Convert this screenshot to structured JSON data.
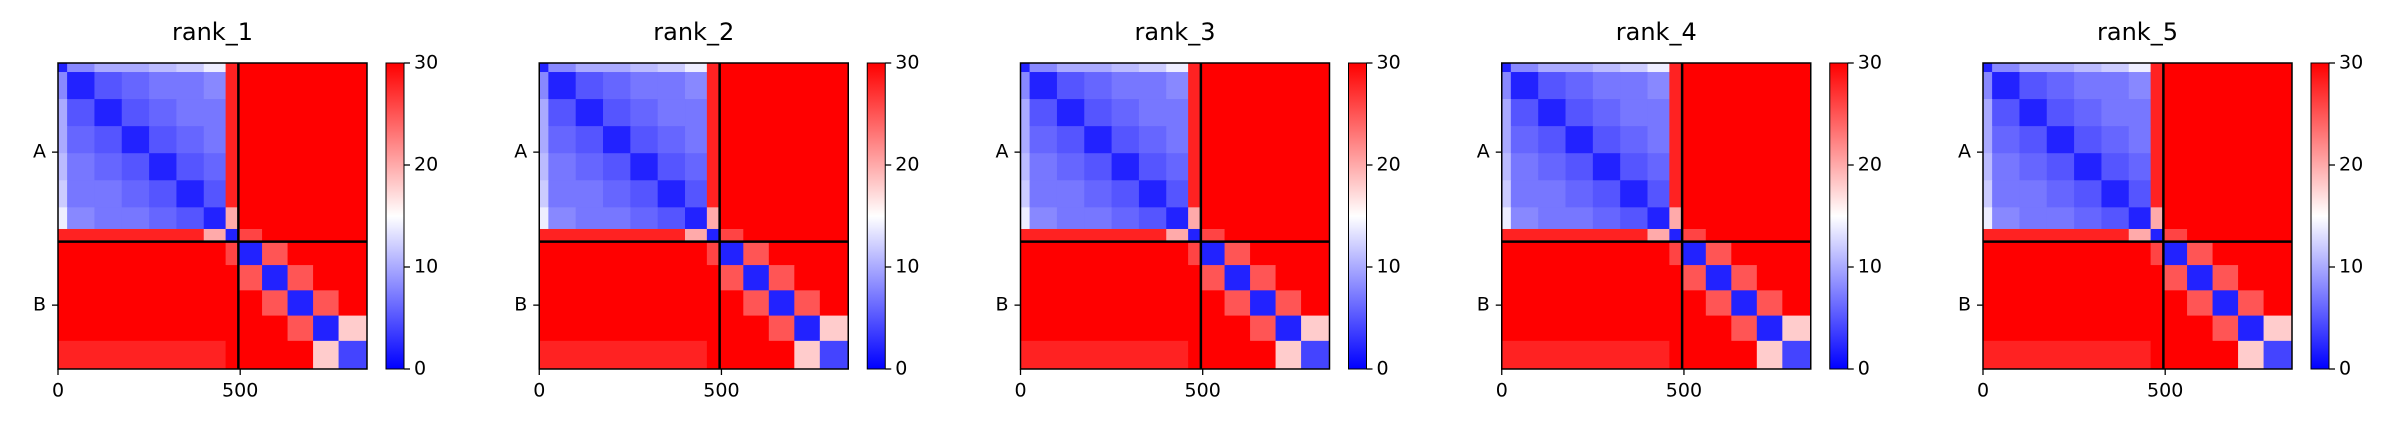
{
  "chart_data": [
    {
      "type": "heatmap",
      "title": "rank_1",
      "xlim": [
        0,
        848
      ],
      "ylim": [
        848,
        0
      ],
      "xticks": [
        0,
        500
      ],
      "yticks": [
        {
          "value": 247,
          "label": "A"
        },
        {
          "value": 671,
          "label": "B"
        }
      ],
      "dividers": [
        495
      ],
      "bins": [
        0,
        25,
        100,
        175,
        250,
        325,
        400,
        460,
        495,
        560,
        630,
        700,
        770,
        848
      ],
      "clim": [
        0,
        30
      ],
      "cticks": [
        0,
        10,
        20,
        30
      ],
      "colormap": [
        "#0000ff",
        "#ffffff",
        "#ff0000"
      ],
      "values": [
        [
          2,
          8,
          10,
          10,
          11,
          12,
          14,
          28,
          30,
          30,
          30,
          30,
          30
        ],
        [
          8,
          2,
          5,
          6,
          7,
          7,
          8,
          28,
          30,
          30,
          30,
          30,
          30
        ],
        [
          10,
          5,
          2,
          5,
          6,
          7,
          7,
          28,
          30,
          30,
          30,
          30,
          30
        ],
        [
          10,
          6,
          5,
          2,
          5,
          6,
          7,
          28,
          30,
          30,
          30,
          30,
          30
        ],
        [
          11,
          7,
          6,
          5,
          2,
          5,
          6,
          28,
          30,
          30,
          30,
          30,
          30
        ],
        [
          12,
          7,
          7,
          6,
          5,
          2,
          5,
          28,
          30,
          30,
          30,
          30,
          30
        ],
        [
          14,
          8,
          7,
          7,
          6,
          5,
          2,
          20,
          30,
          30,
          30,
          30,
          30
        ],
        [
          28,
          28,
          28,
          28,
          28,
          28,
          20,
          2,
          26,
          30,
          30,
          30,
          30
        ],
        [
          30,
          30,
          30,
          30,
          30,
          30,
          30,
          26,
          2,
          25,
          30,
          30,
          30
        ],
        [
          30,
          30,
          30,
          30,
          30,
          30,
          30,
          30,
          25,
          2,
          25,
          30,
          30
        ],
        [
          30,
          30,
          30,
          30,
          30,
          30,
          30,
          30,
          30,
          25,
          2,
          25,
          30
        ],
        [
          30,
          30,
          30,
          30,
          30,
          30,
          30,
          30,
          30,
          30,
          25,
          2,
          18
        ],
        [
          28,
          28,
          28,
          28,
          28,
          28,
          28,
          30,
          30,
          30,
          30,
          18,
          4
        ]
      ]
    },
    {
      "type": "heatmap",
      "title": "rank_2",
      "xlim": [
        0,
        848
      ],
      "ylim": [
        848,
        0
      ],
      "xticks": [
        0,
        500
      ],
      "yticks": [
        {
          "value": 247,
          "label": "A"
        },
        {
          "value": 671,
          "label": "B"
        }
      ],
      "dividers": [
        495
      ],
      "bins": [
        0,
        25,
        100,
        175,
        250,
        325,
        400,
        460,
        495,
        560,
        630,
        700,
        770,
        848
      ],
      "clim": [
        0,
        30
      ],
      "cticks": [
        0,
        10,
        20,
        30
      ],
      "colormap": [
        "#0000ff",
        "#ffffff",
        "#ff0000"
      ],
      "values": [
        [
          2,
          8,
          10,
          10,
          11,
          12,
          14,
          28,
          30,
          30,
          30,
          30,
          30
        ],
        [
          8,
          2,
          5,
          6,
          7,
          7,
          8,
          28,
          30,
          30,
          30,
          30,
          30
        ],
        [
          10,
          5,
          2,
          5,
          6,
          7,
          7,
          28,
          30,
          30,
          30,
          30,
          30
        ],
        [
          10,
          6,
          5,
          2,
          5,
          6,
          7,
          28,
          30,
          30,
          30,
          30,
          30
        ],
        [
          11,
          7,
          6,
          5,
          2,
          5,
          6,
          28,
          30,
          30,
          30,
          30,
          30
        ],
        [
          12,
          7,
          7,
          6,
          5,
          2,
          5,
          28,
          30,
          30,
          30,
          30,
          30
        ],
        [
          14,
          8,
          7,
          7,
          6,
          5,
          2,
          20,
          30,
          30,
          30,
          30,
          30
        ],
        [
          28,
          28,
          28,
          28,
          28,
          28,
          20,
          2,
          26,
          30,
          30,
          30,
          30
        ],
        [
          30,
          30,
          30,
          30,
          30,
          30,
          30,
          26,
          2,
          25,
          30,
          30,
          30
        ],
        [
          30,
          30,
          30,
          30,
          30,
          30,
          30,
          30,
          25,
          2,
          25,
          30,
          30
        ],
        [
          30,
          30,
          30,
          30,
          30,
          30,
          30,
          30,
          30,
          25,
          2,
          25,
          30
        ],
        [
          30,
          30,
          30,
          30,
          30,
          30,
          30,
          30,
          30,
          30,
          25,
          2,
          18
        ],
        [
          28,
          28,
          28,
          28,
          28,
          28,
          28,
          30,
          30,
          30,
          30,
          18,
          4
        ]
      ]
    },
    {
      "type": "heatmap",
      "title": "rank_3",
      "xlim": [
        0,
        848
      ],
      "ylim": [
        848,
        0
      ],
      "xticks": [
        0,
        500
      ],
      "yticks": [
        {
          "value": 247,
          "label": "A"
        },
        {
          "value": 671,
          "label": "B"
        }
      ],
      "dividers": [
        495
      ],
      "bins": [
        0,
        25,
        100,
        175,
        250,
        325,
        400,
        460,
        495,
        560,
        630,
        700,
        770,
        848
      ],
      "clim": [
        0,
        30
      ],
      "cticks": [
        0,
        10,
        20,
        30
      ],
      "colormap": [
        "#0000ff",
        "#ffffff",
        "#ff0000"
      ],
      "values": [
        [
          2,
          8,
          10,
          10,
          11,
          12,
          14,
          28,
          30,
          30,
          30,
          30,
          30
        ],
        [
          8,
          2,
          5,
          6,
          7,
          7,
          8,
          28,
          30,
          30,
          30,
          30,
          30
        ],
        [
          10,
          5,
          2,
          5,
          6,
          7,
          7,
          28,
          30,
          30,
          30,
          30,
          30
        ],
        [
          10,
          6,
          5,
          2,
          5,
          6,
          7,
          28,
          30,
          30,
          30,
          30,
          30
        ],
        [
          11,
          7,
          6,
          5,
          2,
          5,
          6,
          28,
          30,
          30,
          30,
          30,
          30
        ],
        [
          12,
          7,
          7,
          6,
          5,
          2,
          5,
          28,
          30,
          30,
          30,
          30,
          30
        ],
        [
          14,
          8,
          7,
          7,
          6,
          5,
          2,
          20,
          30,
          30,
          30,
          30,
          30
        ],
        [
          28,
          28,
          28,
          28,
          28,
          28,
          20,
          2,
          26,
          30,
          30,
          30,
          30
        ],
        [
          30,
          30,
          30,
          30,
          30,
          30,
          30,
          26,
          2,
          25,
          30,
          30,
          30
        ],
        [
          30,
          30,
          30,
          30,
          30,
          30,
          30,
          30,
          25,
          2,
          25,
          30,
          30
        ],
        [
          30,
          30,
          30,
          30,
          30,
          30,
          30,
          30,
          30,
          25,
          2,
          25,
          30
        ],
        [
          30,
          30,
          30,
          30,
          30,
          30,
          30,
          30,
          30,
          30,
          25,
          2,
          18
        ],
        [
          28,
          28,
          28,
          28,
          28,
          28,
          28,
          30,
          30,
          30,
          30,
          18,
          4
        ]
      ]
    },
    {
      "type": "heatmap",
      "title": "rank_4",
      "xlim": [
        0,
        848
      ],
      "ylim": [
        848,
        0
      ],
      "xticks": [
        0,
        500
      ],
      "yticks": [
        {
          "value": 247,
          "label": "A"
        },
        {
          "value": 671,
          "label": "B"
        }
      ],
      "dividers": [
        495
      ],
      "bins": [
        0,
        25,
        100,
        175,
        250,
        325,
        400,
        460,
        495,
        560,
        630,
        700,
        770,
        848
      ],
      "clim": [
        0,
        30
      ],
      "cticks": [
        0,
        10,
        20,
        30
      ],
      "colormap": [
        "#0000ff",
        "#ffffff",
        "#ff0000"
      ],
      "values": [
        [
          2,
          8,
          10,
          10,
          11,
          12,
          14,
          28,
          30,
          30,
          30,
          30,
          30
        ],
        [
          8,
          2,
          5,
          6,
          7,
          7,
          8,
          28,
          30,
          30,
          30,
          30,
          30
        ],
        [
          10,
          5,
          2,
          5,
          6,
          7,
          7,
          28,
          30,
          30,
          30,
          30,
          30
        ],
        [
          10,
          6,
          5,
          2,
          5,
          6,
          7,
          28,
          30,
          30,
          30,
          30,
          30
        ],
        [
          11,
          7,
          6,
          5,
          2,
          5,
          6,
          28,
          30,
          30,
          30,
          30,
          30
        ],
        [
          12,
          7,
          7,
          6,
          5,
          2,
          5,
          28,
          30,
          30,
          30,
          30,
          30
        ],
        [
          14,
          8,
          7,
          7,
          6,
          5,
          2,
          20,
          30,
          30,
          30,
          30,
          30
        ],
        [
          28,
          28,
          28,
          28,
          28,
          28,
          20,
          2,
          26,
          30,
          30,
          30,
          30
        ],
        [
          30,
          30,
          30,
          30,
          30,
          30,
          30,
          26,
          2,
          25,
          30,
          30,
          30
        ],
        [
          30,
          30,
          30,
          30,
          30,
          30,
          30,
          30,
          25,
          2,
          25,
          30,
          30
        ],
        [
          30,
          30,
          30,
          30,
          30,
          30,
          30,
          30,
          30,
          25,
          2,
          25,
          30
        ],
        [
          30,
          30,
          30,
          30,
          30,
          30,
          30,
          30,
          30,
          30,
          25,
          2,
          18
        ],
        [
          28,
          28,
          28,
          28,
          28,
          28,
          28,
          30,
          30,
          30,
          30,
          18,
          4
        ]
      ]
    },
    {
      "type": "heatmap",
      "title": "rank_5",
      "xlim": [
        0,
        848
      ],
      "ylim": [
        848,
        0
      ],
      "xticks": [
        0,
        500
      ],
      "yticks": [
        {
          "value": 247,
          "label": "A"
        },
        {
          "value": 671,
          "label": "B"
        }
      ],
      "dividers": [
        495
      ],
      "bins": [
        0,
        25,
        100,
        175,
        250,
        325,
        400,
        460,
        495,
        560,
        630,
        700,
        770,
        848
      ],
      "clim": [
        0,
        30
      ],
      "cticks": [
        0,
        10,
        20,
        30
      ],
      "colormap": [
        "#0000ff",
        "#ffffff",
        "#ff0000"
      ],
      "values": [
        [
          2,
          8,
          10,
          10,
          11,
          12,
          14,
          28,
          30,
          30,
          30,
          30,
          30
        ],
        [
          8,
          2,
          5,
          6,
          7,
          7,
          8,
          28,
          30,
          30,
          30,
          30,
          30
        ],
        [
          10,
          5,
          2,
          5,
          6,
          7,
          7,
          28,
          30,
          30,
          30,
          30,
          30
        ],
        [
          10,
          6,
          5,
          2,
          5,
          6,
          7,
          28,
          30,
          30,
          30,
          30,
          30
        ],
        [
          11,
          7,
          6,
          5,
          2,
          5,
          6,
          28,
          30,
          30,
          30,
          30,
          30
        ],
        [
          12,
          7,
          7,
          6,
          5,
          2,
          5,
          28,
          30,
          30,
          30,
          30,
          30
        ],
        [
          14,
          8,
          7,
          7,
          6,
          5,
          2,
          20,
          30,
          30,
          30,
          30,
          30
        ],
        [
          28,
          28,
          28,
          28,
          28,
          28,
          20,
          2,
          26,
          30,
          30,
          30,
          30
        ],
        [
          30,
          30,
          30,
          30,
          30,
          30,
          30,
          26,
          2,
          25,
          30,
          30,
          30
        ],
        [
          30,
          30,
          30,
          30,
          30,
          30,
          30,
          30,
          25,
          2,
          25,
          30,
          30
        ],
        [
          30,
          30,
          30,
          30,
          30,
          30,
          30,
          30,
          30,
          25,
          2,
          25,
          30
        ],
        [
          30,
          30,
          30,
          30,
          30,
          30,
          30,
          30,
          30,
          30,
          25,
          2,
          18
        ],
        [
          28,
          28,
          28,
          28,
          28,
          28,
          28,
          30,
          30,
          30,
          30,
          18,
          4
        ]
      ]
    }
  ]
}
